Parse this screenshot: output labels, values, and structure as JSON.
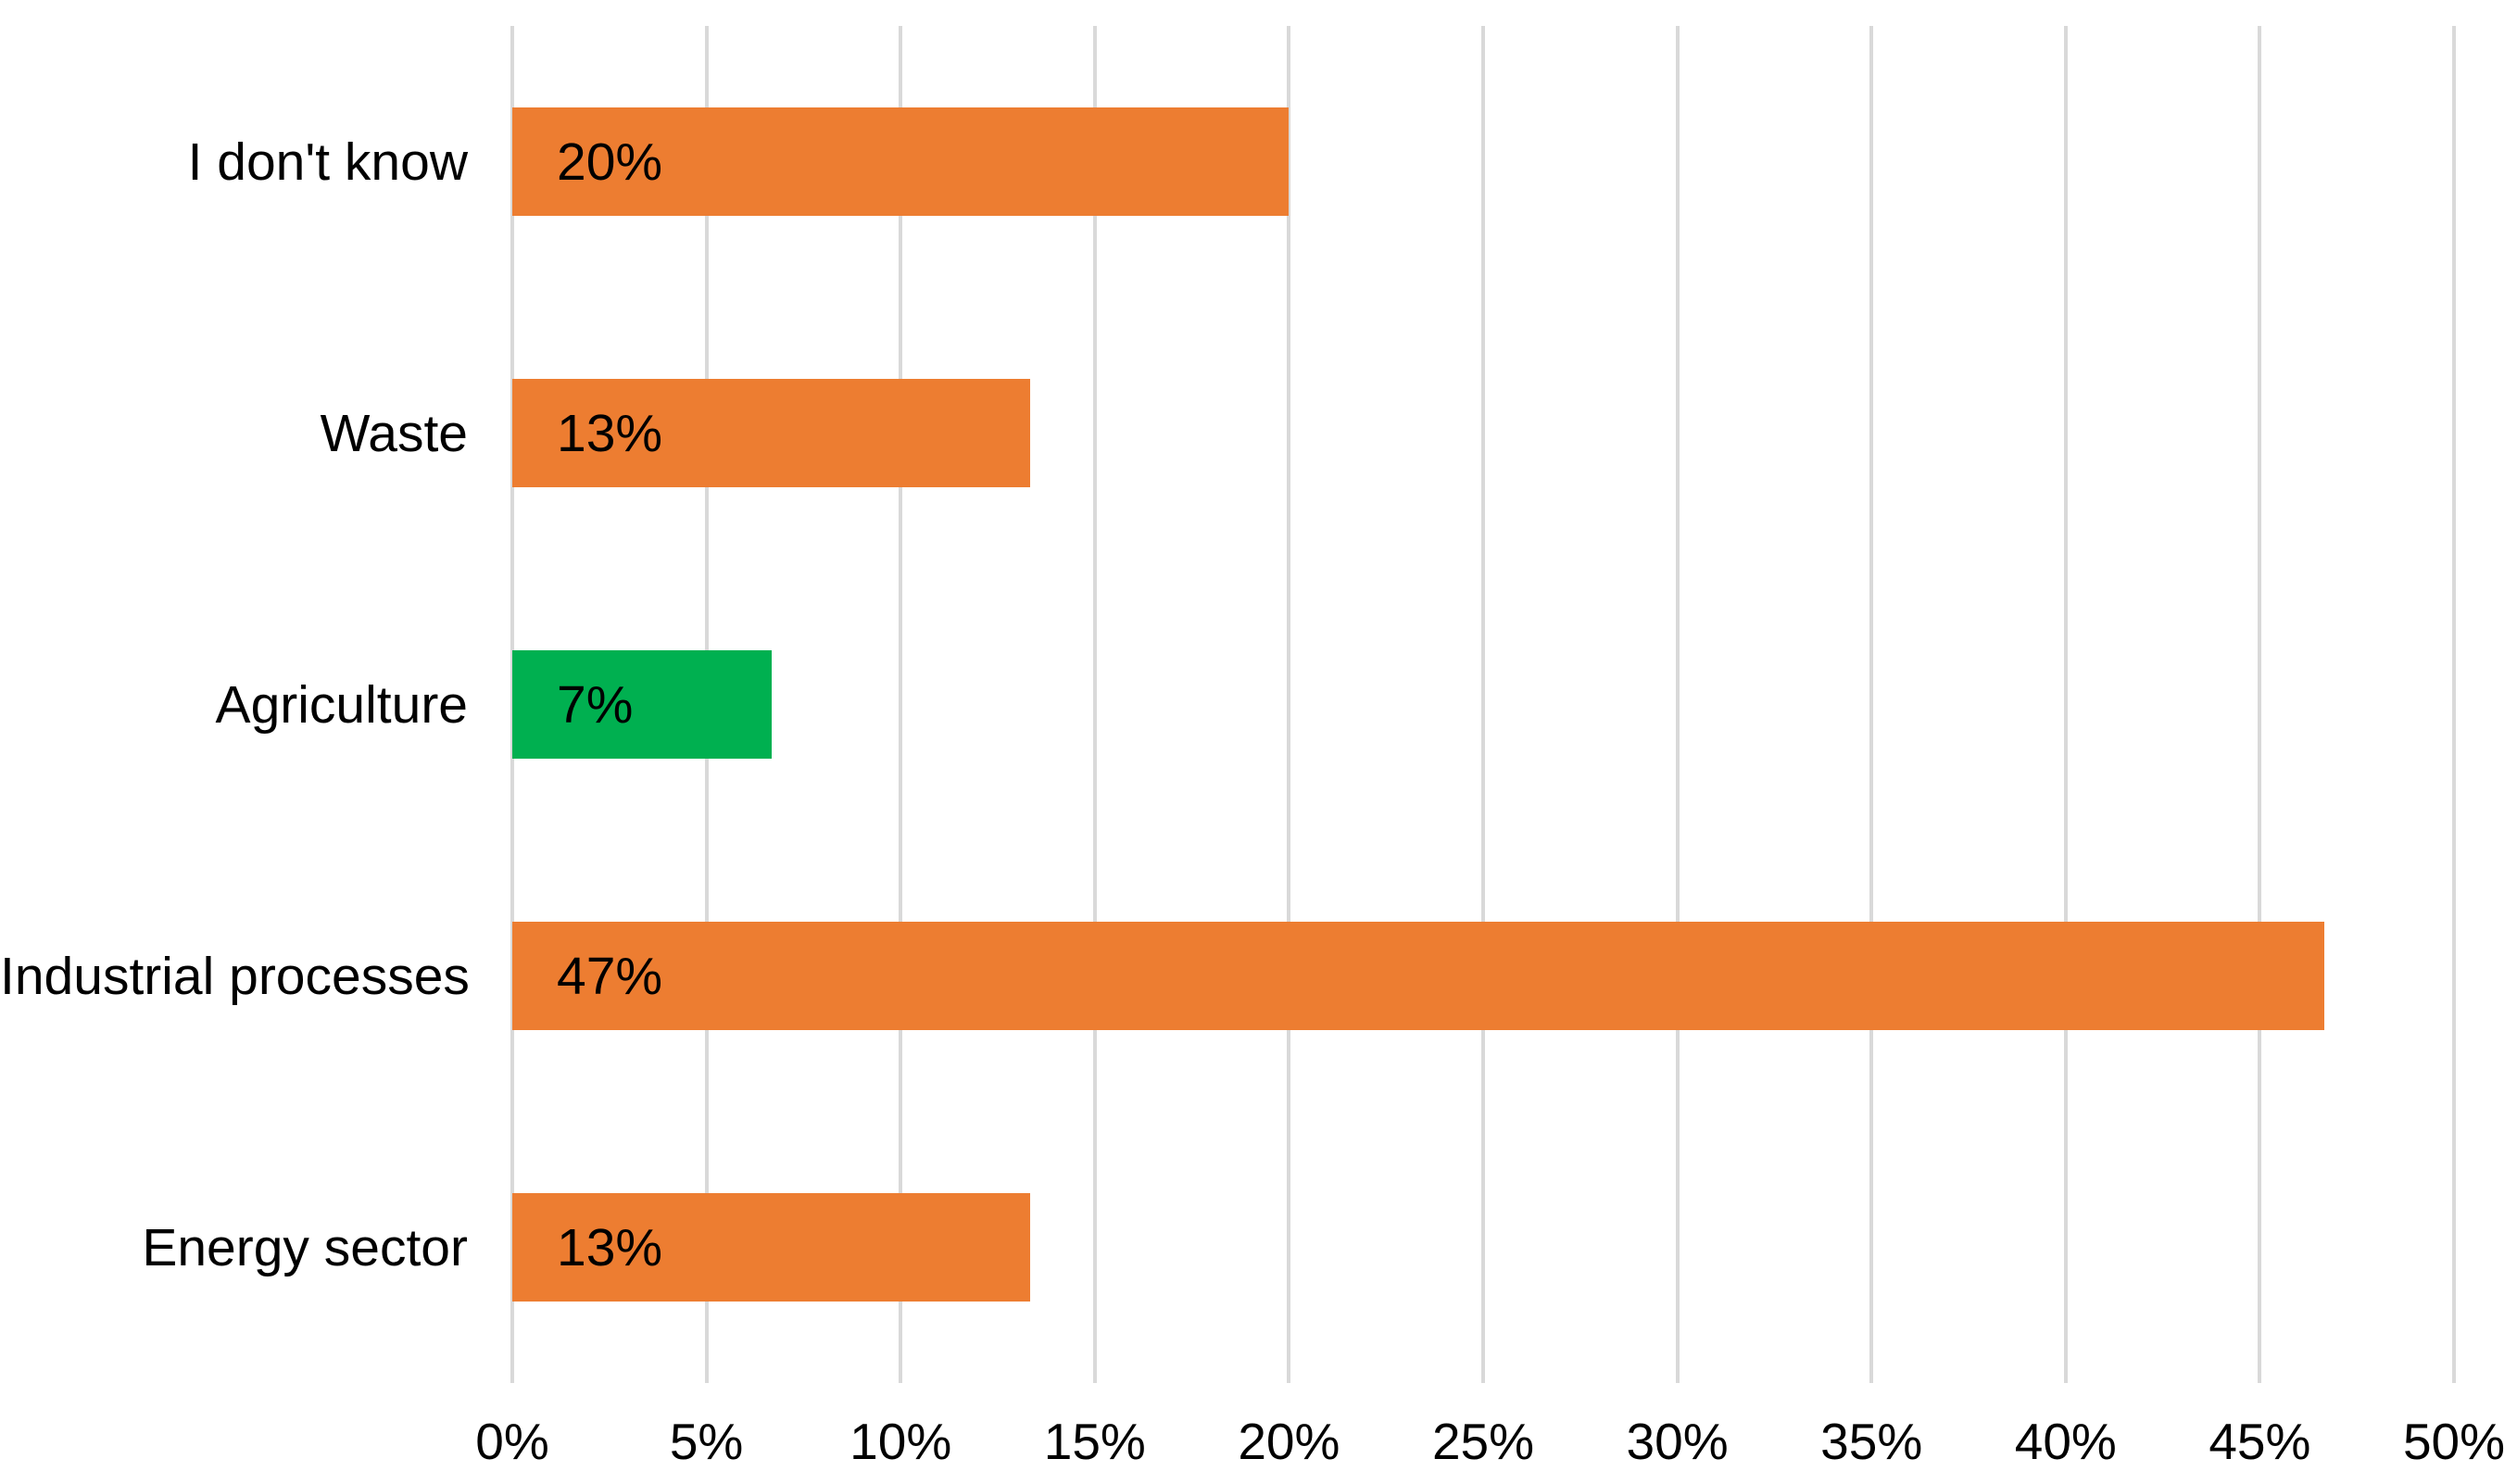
{
  "chart_data": {
    "type": "bar",
    "orientation": "horizontal",
    "title": "",
    "xlabel": "",
    "ylabel": "",
    "categories": [
      "I don't know",
      "Waste",
      "Agriculture",
      "Industrial processes",
      "Energy sector"
    ],
    "values": [
      20,
      13.33,
      6.67,
      46.67,
      13.33
    ],
    "value_labels": [
      "20%",
      "13%",
      "7%",
      "47%",
      "13%"
    ],
    "bar_colors": [
      "#ED7D31",
      "#ED7D31",
      "#00B050",
      "#ED7D31",
      "#ED7D31"
    ],
    "xlim": [
      0,
      50
    ],
    "x_tick_values": [
      0,
      5,
      10,
      15,
      20,
      25,
      30,
      35,
      40,
      45,
      50
    ],
    "x_tick_labels": [
      "0%",
      "5%",
      "10%",
      "15%",
      "20%",
      "25%",
      "30%",
      "35%",
      "40%",
      "45%",
      "50%"
    ],
    "grid": "vertical",
    "gridline_color": "#D9D9D9",
    "background_color": "#FFFFFF",
    "label_color": "#000000",
    "legend": "none",
    "data_label_position": "inside-left"
  }
}
